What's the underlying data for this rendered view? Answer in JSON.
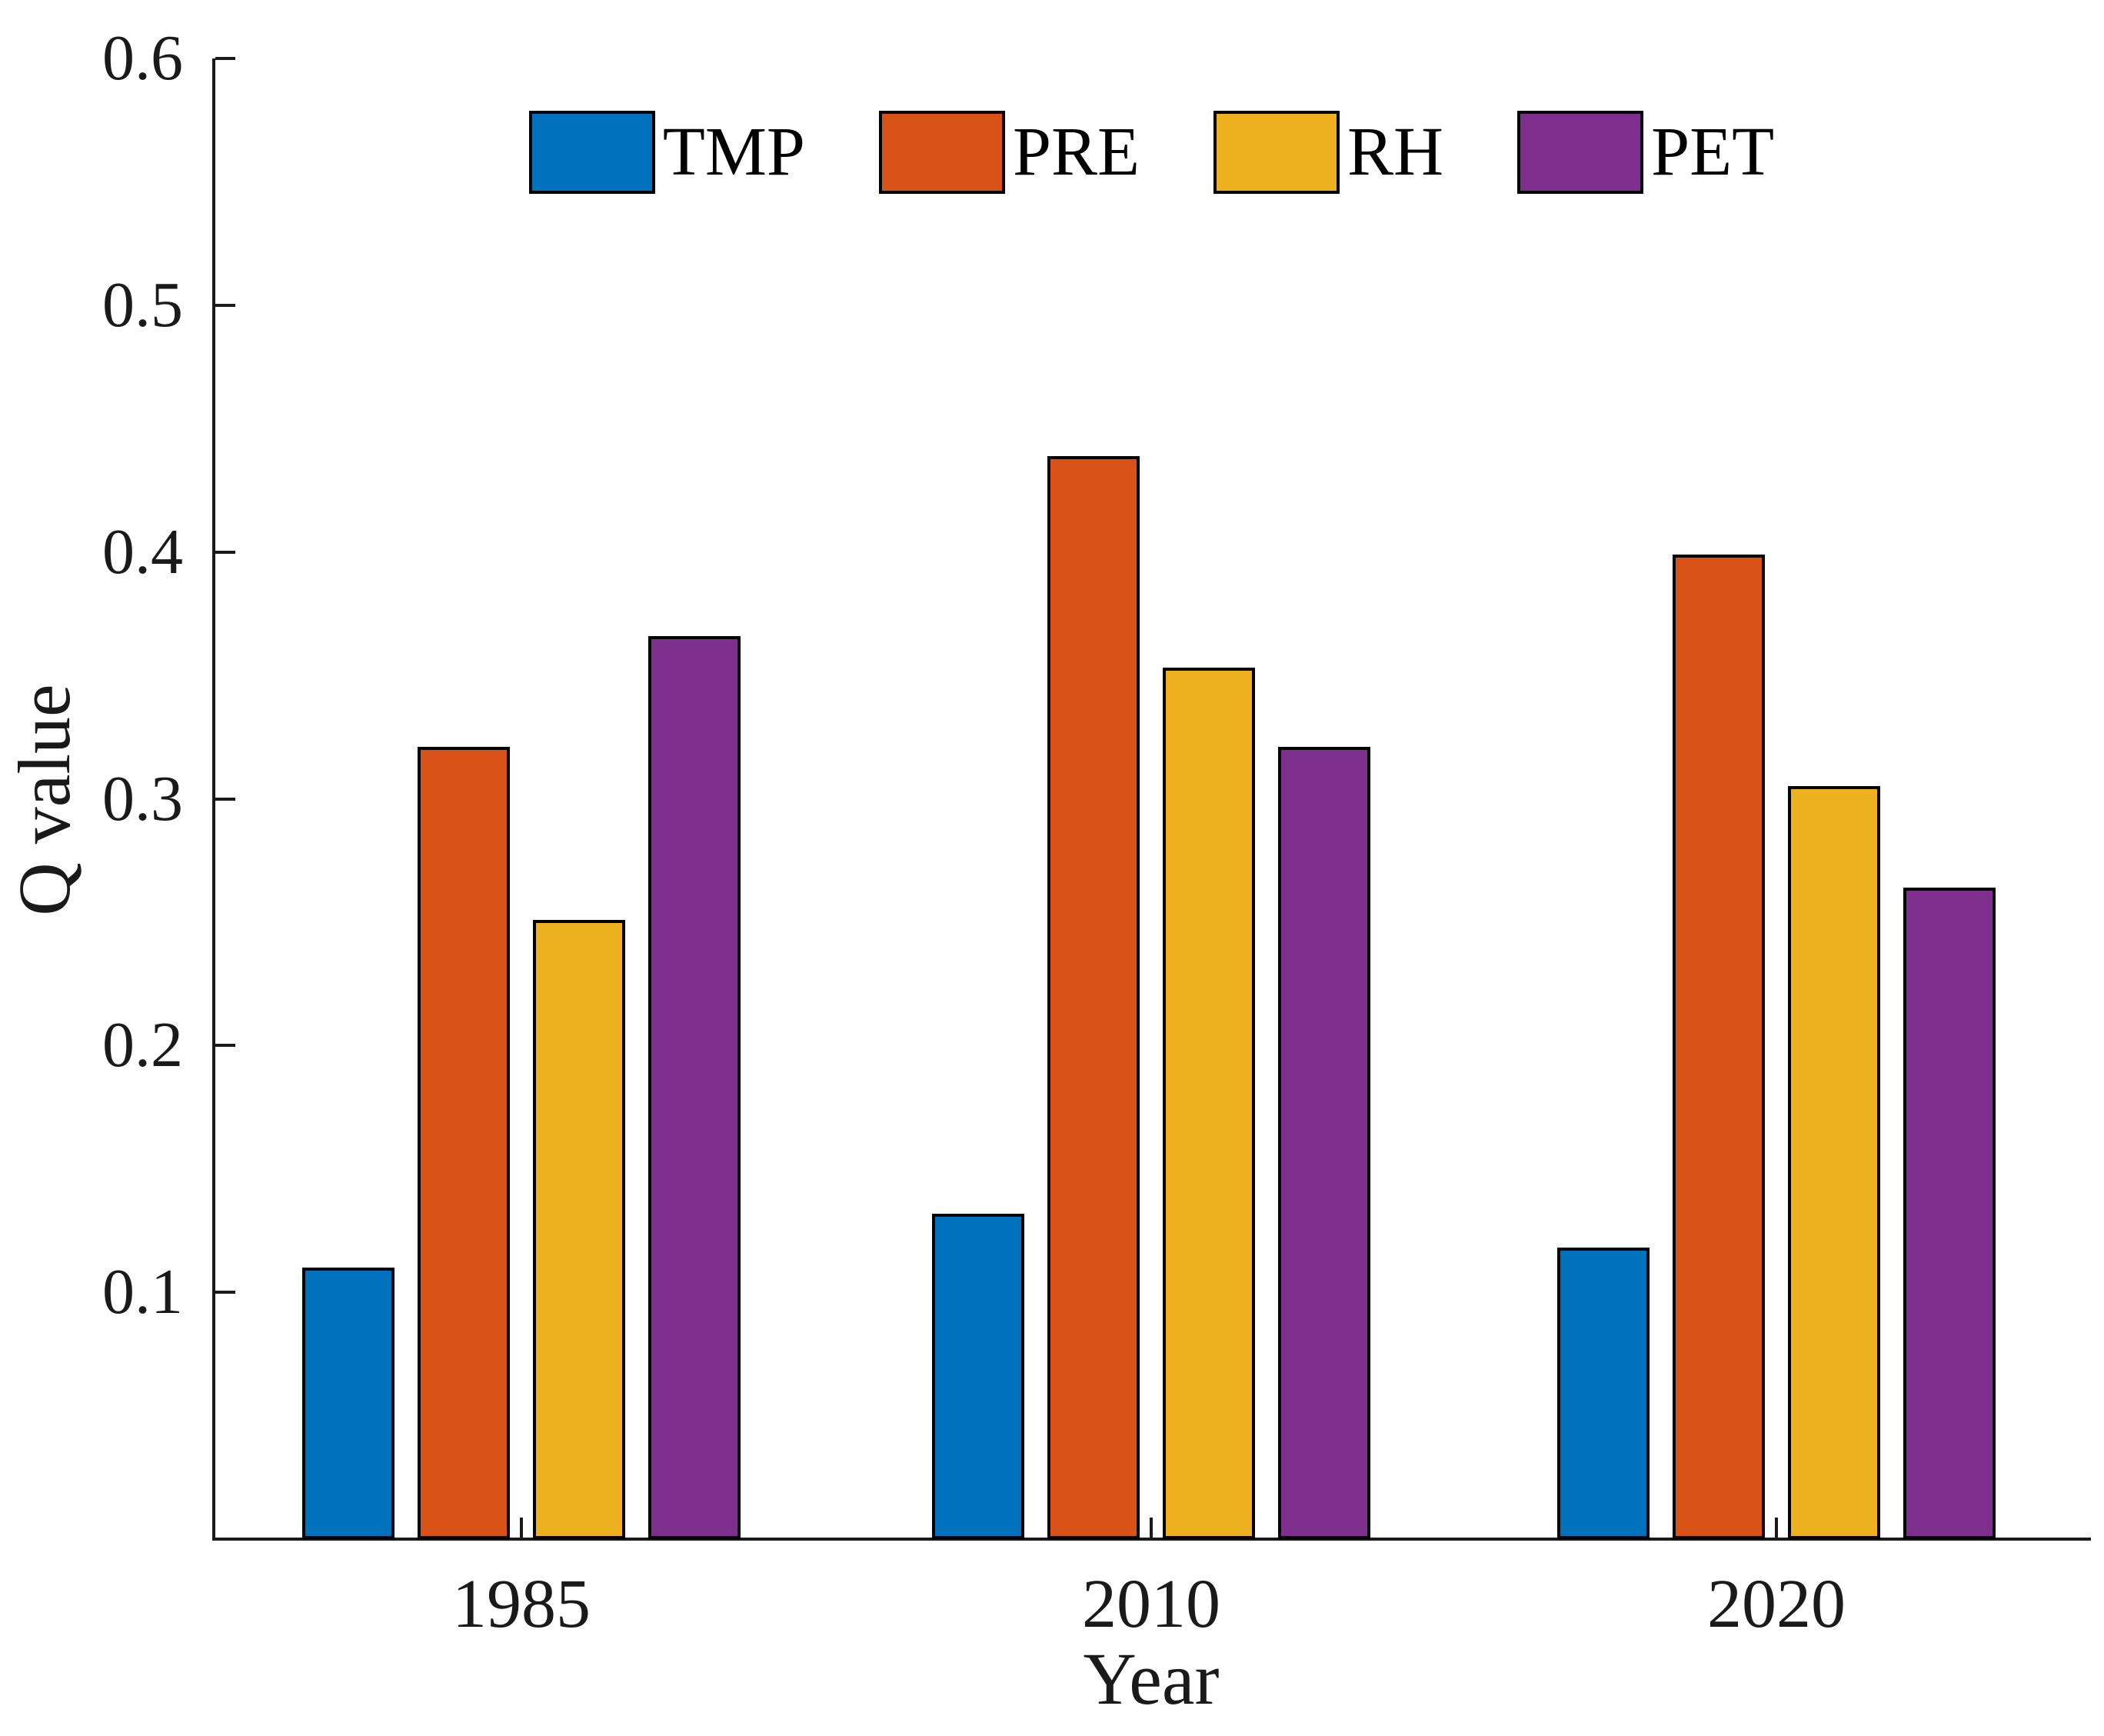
{
  "figure": {
    "background": "#ffffff"
  },
  "axes": {
    "ylabel": "Q value",
    "xlabel": "Year",
    "ytick_labels": [
      "0.1",
      "0.2",
      "0.3",
      "0.4",
      "0.5",
      "0.6"
    ],
    "xtick_labels": [
      "1985",
      "2010",
      "2020"
    ],
    "axis_color": "#1a1a1a"
  },
  "legend": {
    "labels": [
      "TMP",
      "PRE",
      "RH",
      "PET"
    ]
  },
  "chart_data": {
    "type": "bar",
    "title": "",
    "xlabel": "Year",
    "ylabel": "Q value",
    "categories": [
      "1985",
      "2010",
      "2020"
    ],
    "series": [
      {
        "name": "TMP",
        "color": "#0072BD",
        "values": [
          0.11,
          0.132,
          0.118
        ]
      },
      {
        "name": "PRE",
        "color": "#D95319",
        "values": [
          0.321,
          0.439,
          0.399
        ]
      },
      {
        "name": "RH",
        "color": "#EDB120",
        "values": [
          0.251,
          0.353,
          0.305
        ]
      },
      {
        "name": "PET",
        "color": "#7E2F8E",
        "values": [
          0.366,
          0.321,
          0.264
        ]
      }
    ],
    "ylim": [
      0,
      0.6
    ],
    "ytick_step": 0.1,
    "grid": false,
    "legend_position": "top-inside",
    "bar_edge_color": "#000000",
    "tick_direction": "in"
  }
}
